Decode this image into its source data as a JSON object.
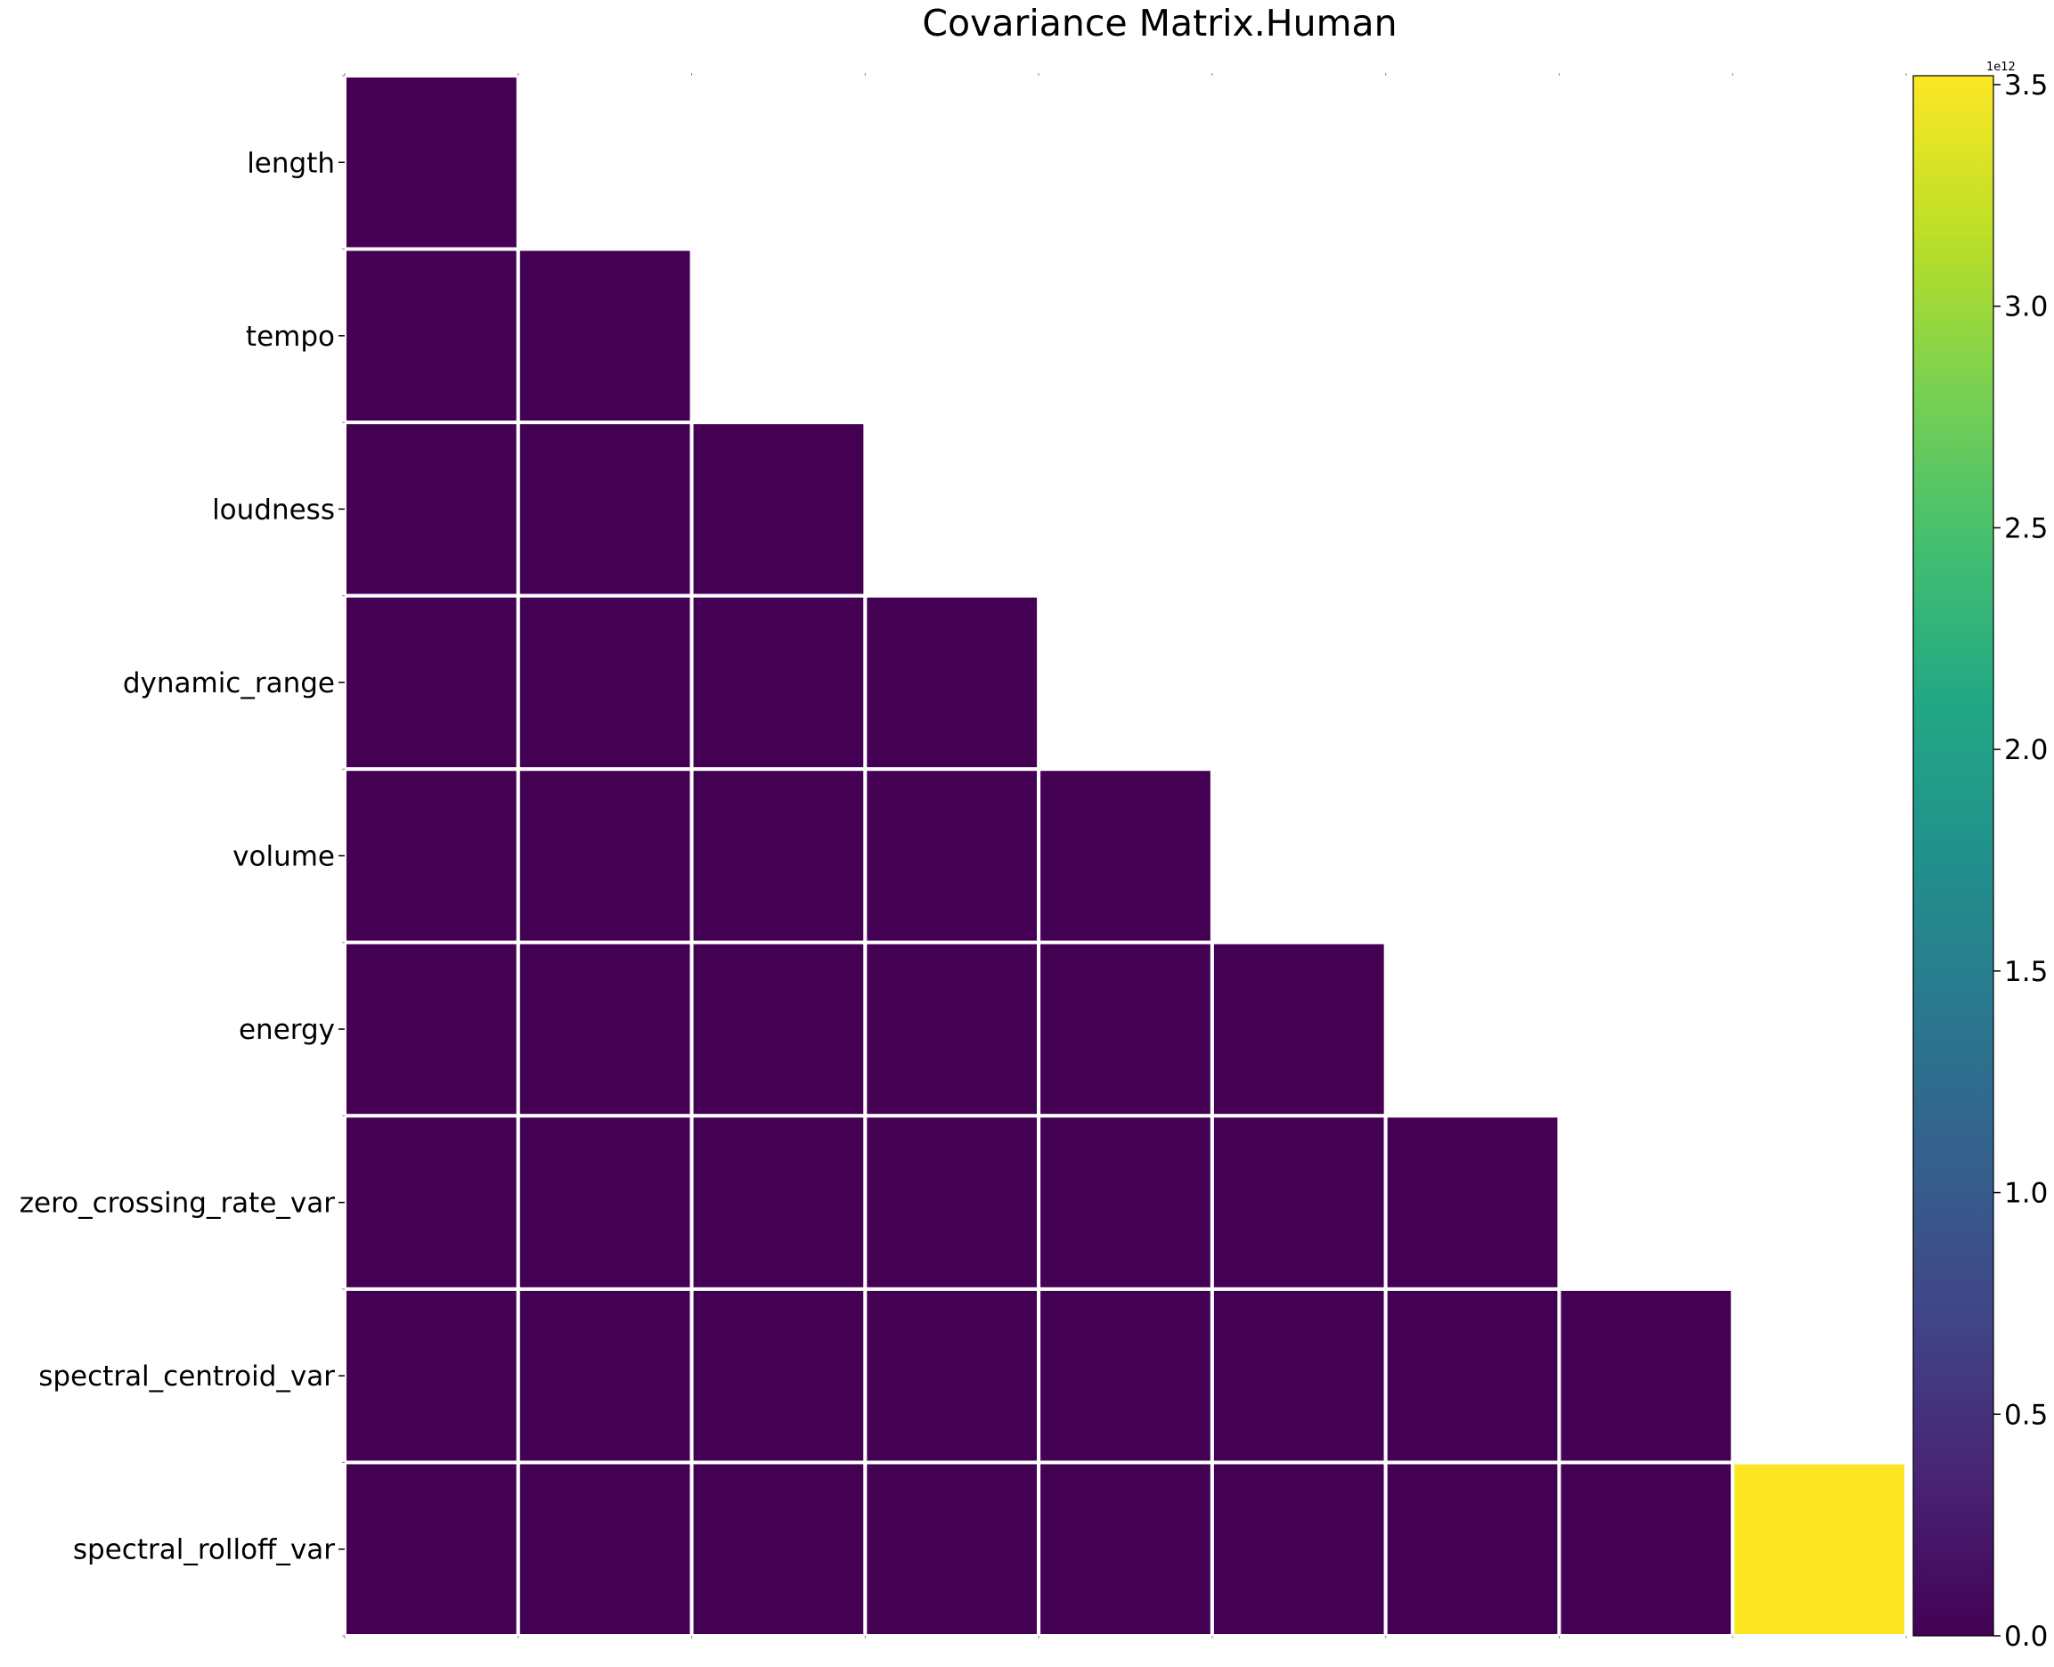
{
  "chart_data": {
    "type": "heatmap",
    "title": "Covariance Matrix.Human",
    "xlabel": "",
    "ylabel": "",
    "row_labels": [
      "length",
      "tempo",
      "loudness",
      "dynamic_range",
      "volume",
      "energy",
      "zero_crossing_rate_var",
      "spectral_centroid_var",
      "spectral_rolloff_var"
    ],
    "mask": "upper-triangle",
    "values": [
      [
        0
      ],
      [
        0,
        0
      ],
      [
        0,
        0,
        0
      ],
      [
        0,
        0,
        0,
        0
      ],
      [
        0,
        0,
        0,
        0,
        0
      ],
      [
        0,
        0,
        0,
        0,
        0,
        0
      ],
      [
        0,
        0,
        0,
        0,
        0,
        0,
        0
      ],
      [
        0,
        0,
        0,
        0,
        0,
        0,
        0,
        0
      ],
      [
        0,
        0,
        0,
        0,
        0,
        0,
        0,
        0,
        3520000000000
      ]
    ],
    "colormap": "viridis",
    "colorbar": {
      "min": 0,
      "max": 3.52,
      "ticks": [
        "0.0",
        "0.5",
        "1.0",
        "1.5",
        "2.0",
        "2.5",
        "3.0",
        "3.5"
      ],
      "exponent_label": "1e12"
    },
    "grid": false,
    "legend": "colorbar-right"
  }
}
